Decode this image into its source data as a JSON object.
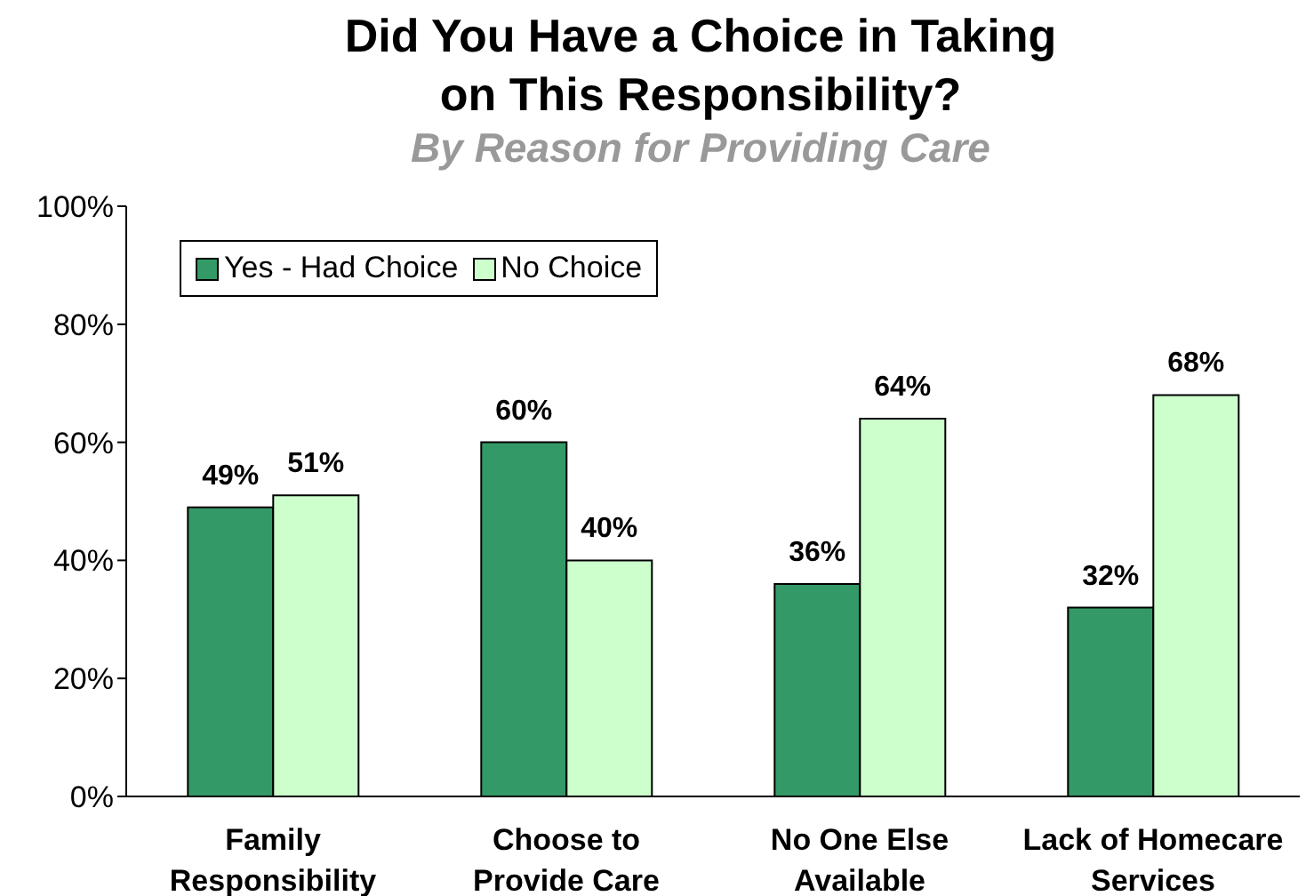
{
  "chart_data": {
    "type": "bar",
    "title": "Did You Have a Choice in Taking on This Responsibility?",
    "subtitle": "By Reason for Providing Care",
    "categories": [
      "Family Responsibility",
      "Choose to Provide Care",
      "No One Else Available",
      "Lack of Homecare Services"
    ],
    "series": [
      {
        "name": "Yes - Had Choice",
        "color": "#339966",
        "values": [
          49,
          60,
          36,
          32
        ],
        "value_labels": [
          "49%",
          "60%",
          "36%",
          "32%"
        ]
      },
      {
        "name": "No Choice",
        "color": "#ccffcc",
        "values": [
          51,
          40,
          64,
          68
        ],
        "value_labels": [
          "51%",
          "40%",
          "64%",
          "68%"
        ]
      }
    ],
    "ylim": [
      0,
      100
    ],
    "yticks": [
      {
        "value": 0,
        "label": "0%"
      },
      {
        "value": 20,
        "label": "20%"
      },
      {
        "value": 40,
        "label": "40%"
      },
      {
        "value": 60,
        "label": "60%"
      },
      {
        "value": 80,
        "label": "80%"
      },
      {
        "value": 100,
        "label": "100%"
      }
    ],
    "legend": "top left"
  }
}
